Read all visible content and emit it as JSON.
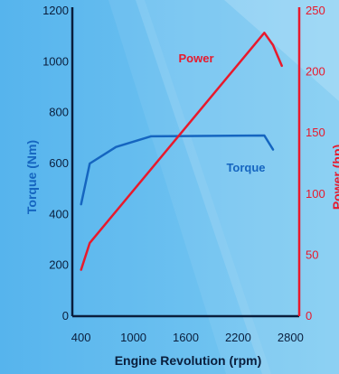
{
  "chart_data": {
    "type": "line",
    "xlabel": "Engine Revolution (rpm)",
    "ylabel_left": "Torque (Nm)",
    "ylabel_right": "Power (hp)",
    "x_ticks": [
      400,
      1000,
      1600,
      2200,
      2800
    ],
    "y_left_ticks": [
      0,
      200,
      400,
      600,
      800,
      1000,
      1200
    ],
    "y_right_ticks": [
      0,
      50,
      100,
      150,
      200,
      250
    ],
    "xlim": [
      300,
      2900
    ],
    "ylim_left": [
      0,
      1200
    ],
    "ylim_right": [
      0,
      250
    ],
    "grid": false,
    "series": [
      {
        "name": "Torque",
        "axis": "left",
        "color": "#1565c0",
        "x": [
          400,
          500,
          800,
          1200,
          2500,
          2600
        ],
        "y": [
          440,
          600,
          665,
          707,
          710,
          655
        ]
      },
      {
        "name": "Power",
        "axis": "right",
        "color": "#e8192c",
        "x": [
          400,
          500,
          2500,
          2600,
          2700
        ],
        "y": [
          38,
          60,
          232,
          222,
          205
        ]
      }
    ]
  }
}
